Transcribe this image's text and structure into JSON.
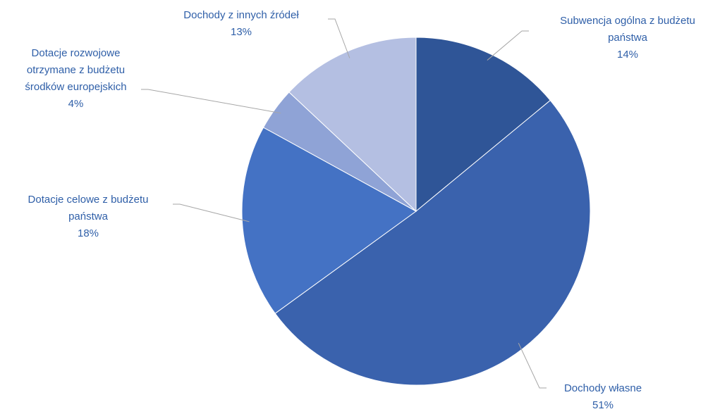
{
  "chart_data": {
    "type": "pie",
    "categories": [
      "Subwencja ogólna z budżetu państwa",
      "Dochody własne",
      "Dotacje celowe z budżetu państwa",
      "Dotacje rozwojowe otrzymane z budżetu środków europejskich",
      "Dochody z innych źródeł"
    ],
    "values": [
      14,
      51,
      18,
      4,
      13
    ],
    "value_labels": [
      "14%",
      "51%",
      "18%",
      "4%",
      "13%"
    ],
    "colors": [
      "#2f5597",
      "#3a62ad",
      "#4472c4",
      "#8fa3d6",
      "#b4bfe2"
    ]
  }
}
